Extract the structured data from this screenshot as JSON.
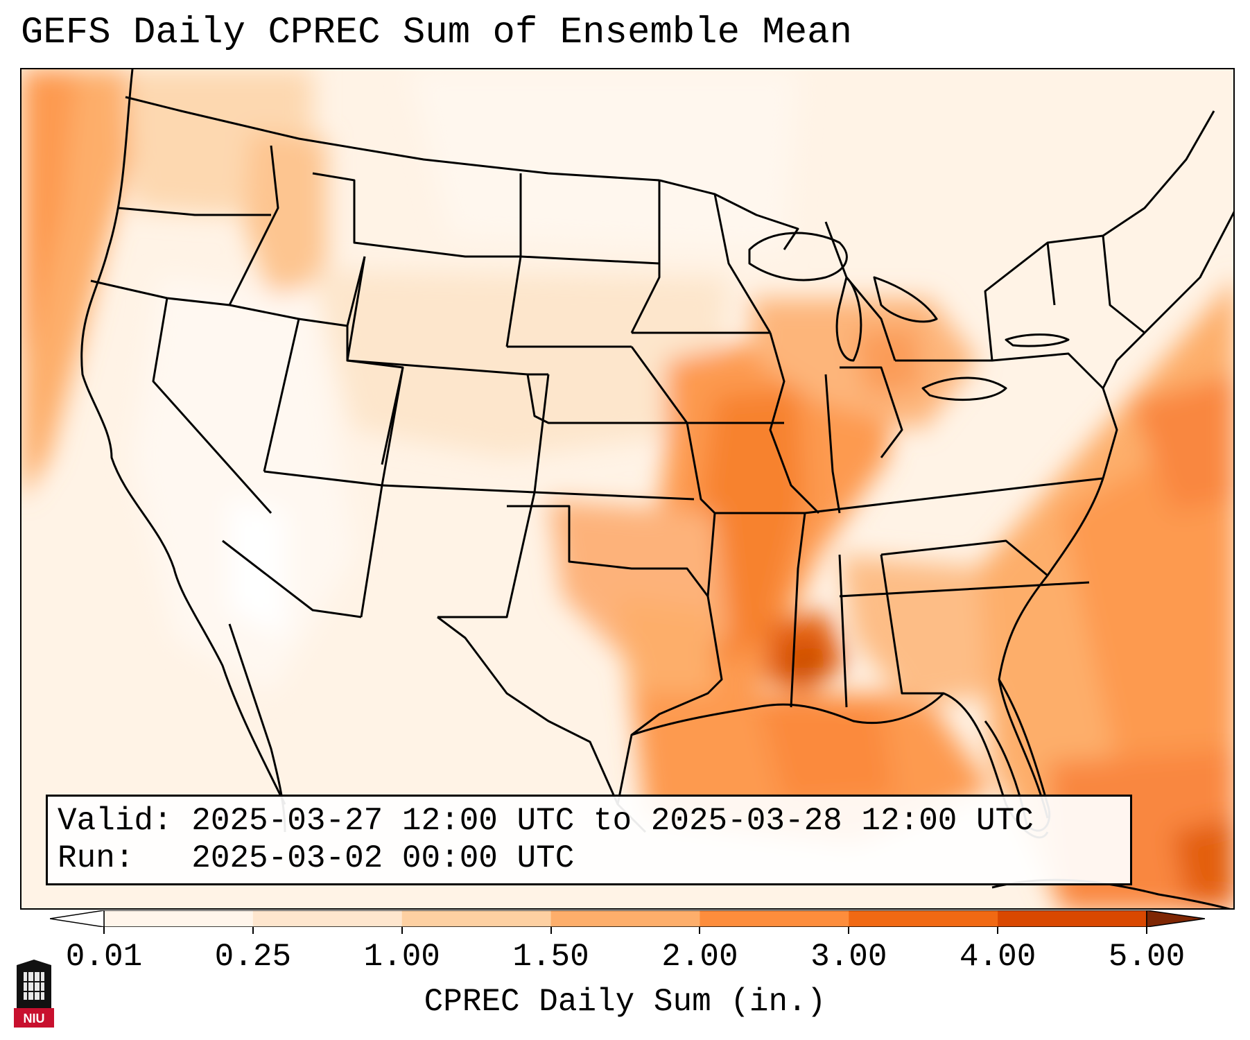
{
  "title": "GEFS Daily CPREC Sum of Ensemble Mean",
  "info": {
    "valid": "Valid: 2025-03-27 12:00 UTC to 2025-03-28 12:00 UTC",
    "run": "Run:   2025-03-02 00:00 UTC"
  },
  "colorbar": {
    "label": "CPREC Daily Sum (in.)",
    "ticks": [
      "0.01",
      "0.25",
      "1.00",
      "1.50",
      "2.00",
      "3.00",
      "4.00",
      "5.00"
    ],
    "colors": [
      "#fff5eb",
      "#fee6ce",
      "#fdd0a2",
      "#fdae6b",
      "#fd8d3c",
      "#f16913",
      "#d94801",
      "#a63603"
    ]
  },
  "logo": {
    "name": "niu-logo",
    "text": "NIU"
  }
}
